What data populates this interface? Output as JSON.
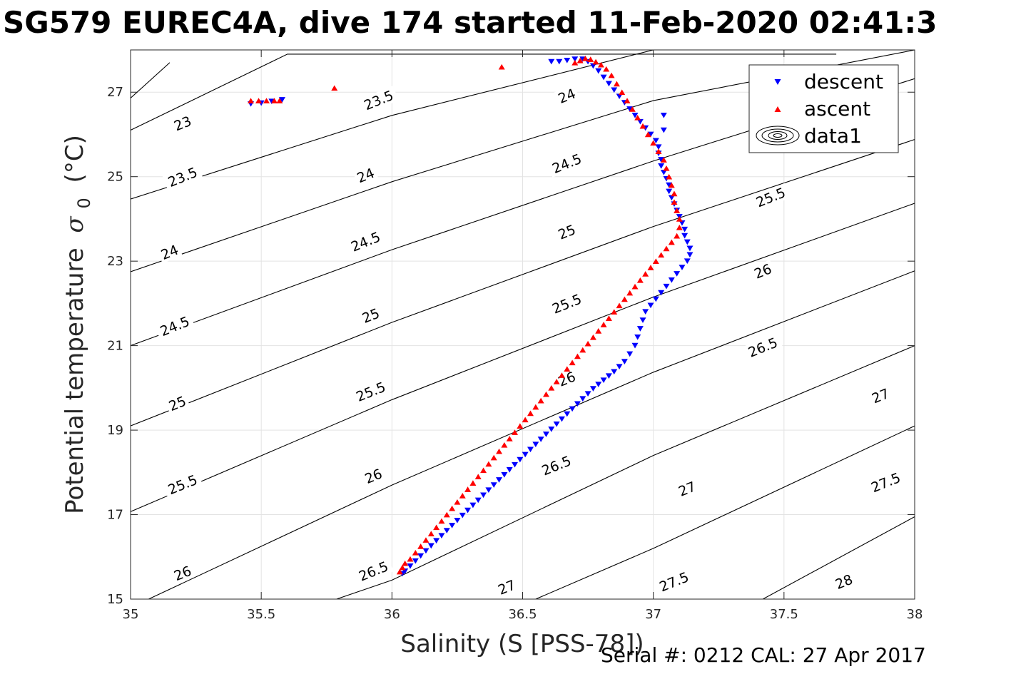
{
  "chart_data": {
    "type": "scatter",
    "title": "SG579 EUREC4A, dive 174 started 11-Feb-2020 02:41:3",
    "xlabel": "Salinity (S [PSS-78])",
    "ylabel_text": "Potential temperature",
    "ylabel_symbol": "σ",
    "ylabel_subscript": "0",
    "ylabel_unit": "(°C)",
    "xlim": [
      35,
      38
    ],
    "ylim": [
      15,
      28
    ],
    "xticks": [
      35,
      35.5,
      36,
      36.5,
      37,
      37.5,
      38
    ],
    "xtick_labels": [
      "35",
      "35.5",
      "36",
      "36.5",
      "37",
      "37.5",
      "38"
    ],
    "yticks": [
      15,
      17,
      19,
      21,
      23,
      25,
      27
    ],
    "ytick_labels": [
      "15",
      "17",
      "19",
      "21",
      "23",
      "25",
      "27"
    ],
    "grid": true,
    "legend_position": "top-right",
    "footer": "Serial #: 0212  CAL: 27 Apr 2017",
    "colors": {
      "descent": "#0000ff",
      "ascent": "#ff0000",
      "contour": "#000000",
      "grid": "#e3e3e3"
    },
    "contours": [
      {
        "label": "23",
        "S": [
          35.0,
          35.15
        ],
        "T": [
          26.86,
          27.7
        ]
      },
      {
        "label": "23.5",
        "S": [
          35.0,
          35.6,
          36.5,
          37.7
        ],
        "T": [
          26.1,
          27.9,
          27.9,
          27.9
        ]
      },
      {
        "label": "24",
        "S": [
          35.0,
          36.0,
          37.0,
          37.2
        ],
        "T": [
          24.47,
          26.45,
          28.0,
          28.0
        ]
      },
      {
        "label": "24.5",
        "S": [
          35.0,
          36.0,
          37.0,
          38.0
        ],
        "T": [
          22.75,
          24.88,
          26.8,
          28.0
        ]
      },
      {
        "label": "25",
        "S": [
          35.0,
          36.0,
          37.0,
          38.0
        ],
        "T": [
          21.0,
          23.27,
          25.37,
          27.32
        ]
      },
      {
        "label": "25.5",
        "S": [
          35.0,
          36.0,
          37.0,
          38.0
        ],
        "T": [
          19.1,
          21.55,
          23.82,
          25.88
        ]
      },
      {
        "label": "26",
        "S": [
          35.0,
          36.0,
          37.0,
          38.0
        ],
        "T": [
          17.07,
          19.72,
          22.15,
          24.37
        ]
      },
      {
        "label": "26.5",
        "S": [
          35.0,
          36.0,
          37.0,
          38.0
        ],
        "T": [
          14.8,
          17.7,
          20.37,
          22.77
        ]
      },
      {
        "label": "27",
        "S": [
          35.6,
          36.0,
          37.0,
          38.0
        ],
        "T": [
          14.6,
          15.45,
          18.4,
          21.0
        ]
      },
      {
        "label": "27.5",
        "S": [
          36.4,
          37.0,
          38.0
        ],
        "T": [
          14.6,
          16.2,
          19.1
        ]
      },
      {
        "label": "28",
        "S": [
          37.3,
          38.0
        ],
        "T": [
          14.6,
          16.95
        ]
      }
    ],
    "contour_labels": [
      {
        "label": "23",
        "S": 35.2,
        "T": 26.25
      },
      {
        "label": "23.5",
        "S": 35.2,
        "T": 24.98
      },
      {
        "label": "24",
        "S": 35.15,
        "T": 23.2
      },
      {
        "label": "24.5",
        "S": 35.17,
        "T": 21.45
      },
      {
        "label": "25",
        "S": 35.18,
        "T": 19.62
      },
      {
        "label": "25.5",
        "S": 35.2,
        "T": 17.7
      },
      {
        "label": "26",
        "S": 35.2,
        "T": 15.6
      },
      {
        "label": "23.5",
        "S": 35.95,
        "T": 26.8
      },
      {
        "label": "24",
        "S": 35.9,
        "T": 25.02
      },
      {
        "label": "24.5",
        "S": 35.9,
        "T": 23.45
      },
      {
        "label": "25",
        "S": 35.92,
        "T": 21.7
      },
      {
        "label": "25.5",
        "S": 35.92,
        "T": 19.9
      },
      {
        "label": "26",
        "S": 35.93,
        "T": 17.9
      },
      {
        "label": "26.5",
        "S": 35.93,
        "T": 15.65
      },
      {
        "label": "24",
        "S": 36.67,
        "T": 26.9
      },
      {
        "label": "24.5",
        "S": 36.67,
        "T": 25.3
      },
      {
        "label": "25",
        "S": 36.67,
        "T": 23.68
      },
      {
        "label": "25.5",
        "S": 36.67,
        "T": 21.98
      },
      {
        "label": "26",
        "S": 36.67,
        "T": 20.2
      },
      {
        "label": "26.5",
        "S": 36.63,
        "T": 18.15
      },
      {
        "label": "27",
        "S": 36.44,
        "T": 15.27
      },
      {
        "label": "25.5",
        "S": 37.45,
        "T": 24.5
      },
      {
        "label": "26",
        "S": 37.42,
        "T": 22.75
      },
      {
        "label": "26.5",
        "S": 37.42,
        "T": 20.95
      },
      {
        "label": "27",
        "S": 37.13,
        "T": 17.6
      },
      {
        "label": "27.5",
        "S": 37.08,
        "T": 15.4
      },
      {
        "label": "27",
        "S": 37.87,
        "T": 19.8
      },
      {
        "label": "27.5",
        "S": 37.89,
        "T": 17.75
      },
      {
        "label": "28",
        "S": 37.73,
        "T": 15.4
      }
    ],
    "series": [
      {
        "name": "descent",
        "marker": "triangle-down",
        "S": [
          36.04,
          36.05,
          36.07,
          36.09,
          36.11,
          36.13,
          36.15,
          36.17,
          36.19,
          36.21,
          36.23,
          36.25,
          36.27,
          36.29,
          36.31,
          36.33,
          36.35,
          36.37,
          36.39,
          36.41,
          36.43,
          36.45,
          36.47,
          36.49,
          36.51,
          36.53,
          36.55,
          36.57,
          36.59,
          36.61,
          36.63,
          36.65,
          36.67,
          36.69,
          36.71,
          36.73,
          36.75,
          36.77,
          36.79,
          36.81,
          36.83,
          36.85,
          36.87,
          36.89,
          36.91,
          36.93,
          36.94,
          36.95,
          36.96,
          36.97,
          36.99,
          37.01,
          37.03,
          37.05,
          37.07,
          37.09,
          37.11,
          37.13,
          37.14,
          37.14,
          37.13,
          37.12,
          37.12,
          37.11,
          37.1,
          37.09,
          37.08,
          37.07,
          37.06,
          37.06,
          37.05,
          37.04,
          37.03,
          37.03,
          37.02,
          37.02,
          37.01,
          36.99,
          36.97,
          36.95,
          36.93,
          36.91,
          36.89,
          36.87,
          36.85,
          36.83,
          36.81,
          36.79,
          36.77,
          36.75,
          36.73,
          36.7,
          36.67,
          36.64,
          36.61,
          37.04,
          37.04,
          35.46,
          35.5,
          35.54,
          35.58
        ],
        "T": [
          15.6,
          15.66,
          15.78,
          15.9,
          16.02,
          16.14,
          16.26,
          16.38,
          16.5,
          16.62,
          16.74,
          16.86,
          16.98,
          17.1,
          17.22,
          17.34,
          17.46,
          17.58,
          17.7,
          17.82,
          17.94,
          18.06,
          18.18,
          18.3,
          18.42,
          18.54,
          18.66,
          18.78,
          18.9,
          19.02,
          19.14,
          19.26,
          19.38,
          19.5,
          19.62,
          19.74,
          19.86,
          19.98,
          20.08,
          20.18,
          20.28,
          20.38,
          20.5,
          20.62,
          20.8,
          21.0,
          21.2,
          21.4,
          21.6,
          21.8,
          21.95,
          22.1,
          22.25,
          22.4,
          22.55,
          22.7,
          22.85,
          23.0,
          23.15,
          23.3,
          23.45,
          23.6,
          23.75,
          23.9,
          24.05,
          24.2,
          24.35,
          24.5,
          24.65,
          24.8,
          24.95,
          25.1,
          25.25,
          25.4,
          25.55,
          25.7,
          25.85,
          26.0,
          26.15,
          26.3,
          26.45,
          26.6,
          26.75,
          26.9,
          27.05,
          27.2,
          27.35,
          27.5,
          27.62,
          27.72,
          27.78,
          27.78,
          27.75,
          27.72,
          27.72,
          26.1,
          26.45,
          26.72,
          26.74,
          26.78,
          26.82
        ]
      },
      {
        "name": "ascent",
        "marker": "triangle-up",
        "S": [
          36.03,
          36.04,
          36.05,
          36.07,
          36.09,
          36.11,
          36.13,
          36.15,
          36.17,
          36.19,
          36.21,
          36.23,
          36.25,
          36.27,
          36.29,
          36.31,
          36.33,
          36.35,
          36.37,
          36.39,
          36.41,
          36.43,
          36.45,
          36.47,
          36.49,
          36.51,
          36.53,
          36.55,
          36.57,
          36.59,
          36.61,
          36.63,
          36.65,
          36.67,
          36.69,
          36.71,
          36.73,
          36.75,
          36.77,
          36.79,
          36.81,
          36.83,
          36.85,
          36.87,
          36.89,
          36.91,
          36.93,
          36.95,
          36.97,
          36.99,
          37.01,
          37.03,
          37.05,
          37.07,
          37.09,
          37.1,
          37.1,
          37.09,
          37.08,
          37.08,
          37.07,
          37.06,
          37.05,
          37.04,
          37.02,
          37.0,
          36.98,
          36.96,
          36.94,
          36.92,
          36.9,
          36.88,
          36.86,
          36.84,
          36.82,
          36.8,
          36.78,
          36.76,
          36.74,
          36.72,
          36.7,
          35.46,
          35.49,
          35.52,
          35.55,
          35.57,
          35.78,
          36.42
        ],
        "T": [
          15.65,
          15.75,
          15.85,
          15.95,
          16.1,
          16.25,
          16.4,
          16.55,
          16.7,
          16.85,
          17.0,
          17.15,
          17.3,
          17.45,
          17.6,
          17.75,
          17.9,
          18.05,
          18.2,
          18.35,
          18.5,
          18.65,
          18.8,
          18.95,
          19.1,
          19.25,
          19.4,
          19.55,
          19.7,
          19.85,
          20.0,
          20.15,
          20.3,
          20.45,
          20.6,
          20.75,
          20.9,
          21.05,
          21.2,
          21.35,
          21.5,
          21.65,
          21.8,
          21.95,
          22.1,
          22.25,
          22.4,
          22.55,
          22.7,
          22.85,
          23.0,
          23.15,
          23.3,
          23.45,
          23.6,
          23.8,
          24.0,
          24.2,
          24.4,
          24.6,
          24.8,
          25.0,
          25.2,
          25.4,
          25.6,
          25.8,
          26.0,
          26.2,
          26.4,
          26.6,
          26.8,
          27.0,
          27.2,
          27.4,
          27.55,
          27.65,
          27.72,
          27.78,
          27.8,
          27.75,
          27.7,
          26.8,
          26.8,
          26.8,
          26.8,
          26.8,
          27.1,
          27.6
        ]
      }
    ],
    "legend": [
      {
        "key": "descent",
        "label": "descent"
      },
      {
        "key": "ascent",
        "label": "ascent"
      },
      {
        "key": "data1",
        "label": "data1"
      }
    ]
  }
}
